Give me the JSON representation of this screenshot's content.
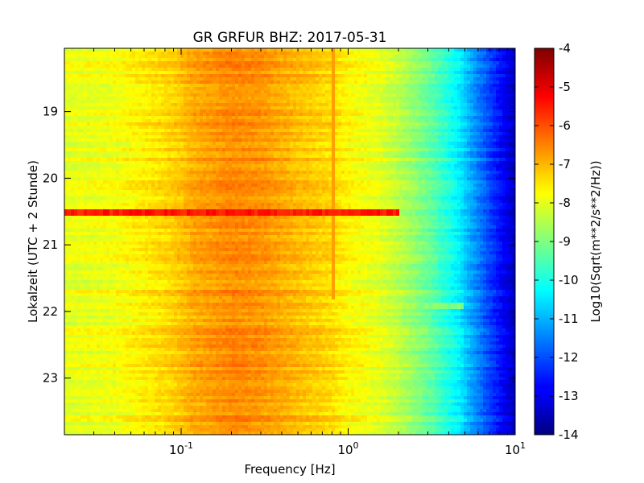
{
  "chart_data": {
    "type": "heatmap",
    "title": "GR GRFUR BHZ: 2017-05-31",
    "xlabel": "Frequency [Hz]",
    "ylabel": "Lokalzeit (UTC + 2 Stunde)",
    "x_scale": "log",
    "xlim": [
      0.02,
      10
    ],
    "x_ticks": [
      {
        "value": 0.1,
        "base": "10",
        "exp": "-1"
      },
      {
        "value": 1,
        "base": "10",
        "exp": "0"
      },
      {
        "value": 10,
        "base": "10",
        "exp": "1"
      }
    ],
    "ylim": [
      18.05,
      23.85
    ],
    "y_inverted": true,
    "y_ticks": [
      "19",
      "20",
      "21",
      "22",
      "23"
    ],
    "colorbar": {
      "label": "Log10(Sqrt(m**2/s**2/Hz))",
      "range": [
        -14,
        -4
      ],
      "ticks": [
        "-4",
        "-5",
        "-6",
        "-7",
        "-8",
        "-9",
        "-10",
        "-11",
        "-12",
        "-13",
        "-14"
      ],
      "colormap": "jet"
    },
    "spectrum_profile": {
      "frequency_hz": [
        0.02,
        0.038,
        0.06,
        0.09,
        0.12,
        0.2,
        0.3,
        0.5,
        0.8,
        1.0,
        1.5,
        2.0,
        3.0,
        4.5,
        6.0,
        8.0,
        10.0
      ],
      "log10_amplitude": [
        -8.0,
        -7.9,
        -7.6,
        -7.3,
        -6.9,
        -6.6,
        -6.7,
        -7.1,
        -7.4,
        -7.7,
        -8.0,
        -8.4,
        -9.2,
        -10.3,
        -11.5,
        -12.6,
        -13.4
      ]
    },
    "features": [
      {
        "type": "horizontal_band",
        "time": 20.5,
        "freq_range": [
          0.02,
          2.0
        ],
        "peak_value": -5.5
      },
      {
        "type": "vertical_line",
        "frequency_hz": 0.8,
        "time_range": [
          18.05,
          21.8
        ],
        "value": -6.8
      },
      {
        "type": "horizontal_band",
        "time": 21.9,
        "freq_range": [
          2.0,
          5.0
        ],
        "peak_value": -9.0
      }
    ]
  }
}
